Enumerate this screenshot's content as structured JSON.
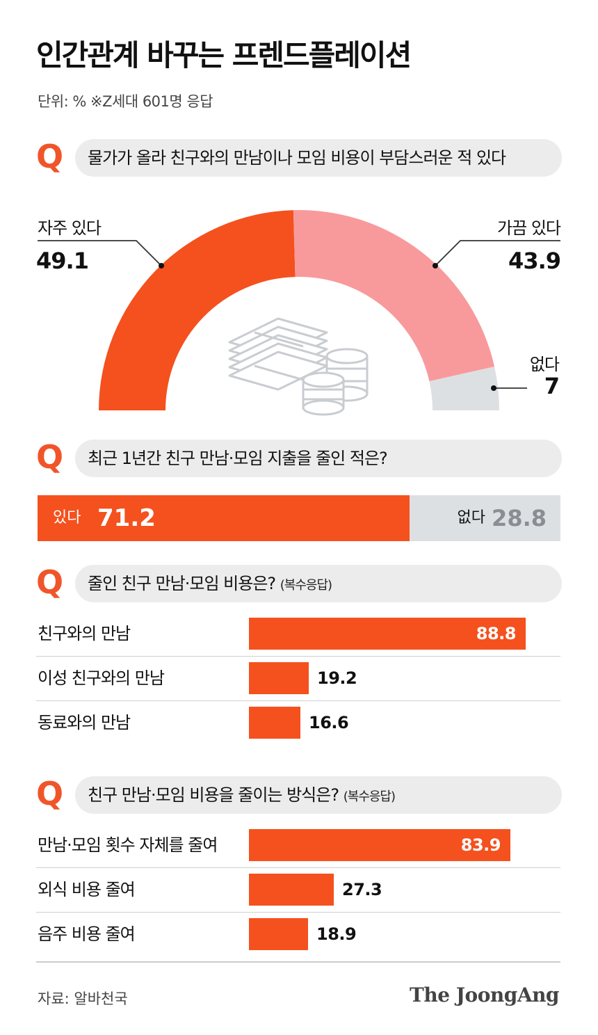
{
  "title": "인간관계 바꾸는 프렌드플레이션",
  "unit_note": "단위: %   ※Z세대 601명 응답",
  "q_mark": "Q",
  "colors": {
    "accent": "#f4511e",
    "pink": "#f89a9c",
    "gray": "#dde0e3"
  },
  "donut_icon": "money-stack-and-coins-icon",
  "chart_data": [
    {
      "type": "pie",
      "question": "물가가 올라 친구와의 만남이나 모임 비용이 부담스러운 적 있다",
      "categories": [
        "자주 있다",
        "가끔 있다",
        "없다"
      ],
      "values": [
        49.1,
        43.9,
        7
      ],
      "value_labels": [
        "49.1",
        "43.9",
        "7"
      ],
      "colors": [
        "#f4511e",
        "#f89a9c",
        "#dde0e3"
      ]
    },
    {
      "type": "bar",
      "question": "최근 1년간 친구 만남·모임 지출을 줄인 적은?",
      "categories": [
        "있다",
        "없다"
      ],
      "values": [
        71.2,
        28.8
      ],
      "value_labels": [
        "71.2",
        "28.8"
      ]
    },
    {
      "type": "bar",
      "question": "줄인 친구 만남·모임 비용은?",
      "question_note": "(복수응답)",
      "categories": [
        "친구와의 만남",
        "이성 친구와의 만남",
        "동료와의 만남"
      ],
      "values": [
        88.8,
        19.2,
        16.6
      ],
      "value_labels": [
        "88.8",
        "19.2",
        "16.6"
      ]
    },
    {
      "type": "bar",
      "question": "친구 만남·모임 비용을 줄이는 방식은?",
      "question_note": "(복수응답)",
      "categories": [
        "만남·모임 횟수 자체를 줄여",
        "외식 비용 줄여",
        "음주 비용 줄여"
      ],
      "values": [
        83.9,
        27.3,
        18.9
      ],
      "value_labels": [
        "83.9",
        "27.3",
        "18.9"
      ]
    }
  ],
  "source": "자료: 알바천국",
  "brand": "The JoongAng"
}
